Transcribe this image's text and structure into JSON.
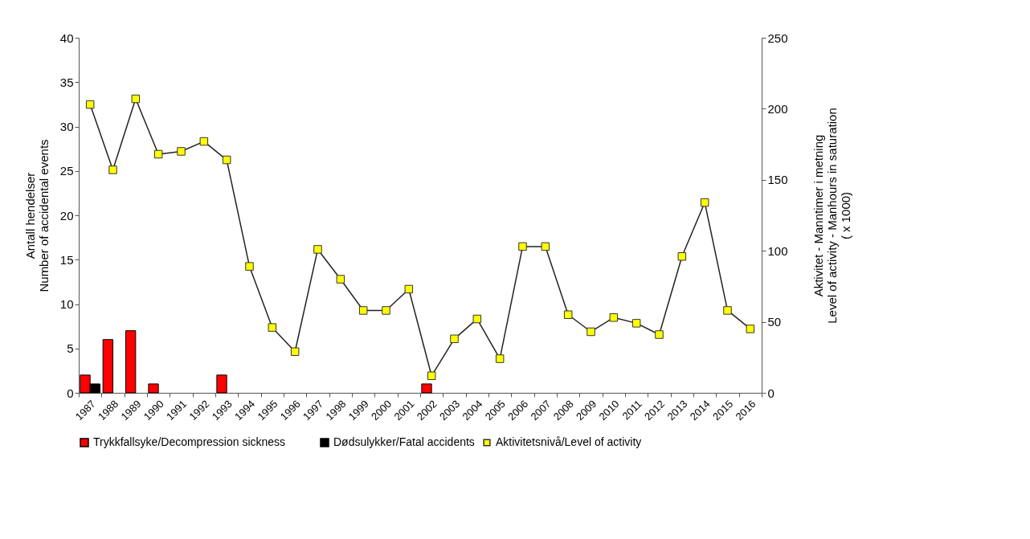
{
  "chart_data": {
    "type": "bar",
    "categories": [
      "1987",
      "1988",
      "1989",
      "1990",
      "1991",
      "1992",
      "1993",
      "1994",
      "1995",
      "1996",
      "1997",
      "1998",
      "1999",
      "2000",
      "2001",
      "2002",
      "2003",
      "2004",
      "2005",
      "2006",
      "2007",
      "2008",
      "2009",
      "2010",
      "2011",
      "2012",
      "2013",
      "2014",
      "2015",
      "2016"
    ],
    "series": [
      {
        "name": "Trykkfallsyke/Decompression sickness",
        "color": "#ff0000",
        "values": [
          2,
          6,
          7,
          1,
          null,
          null,
          2,
          null,
          null,
          null,
          null,
          null,
          null,
          null,
          null,
          1,
          null,
          null,
          null,
          null,
          null,
          null,
          null,
          null,
          null,
          null,
          null,
          null,
          null,
          null
        ]
      },
      {
        "name": "Dødsulykker/Fatal accidents",
        "color": "#000000",
        "values": [
          1,
          null,
          null,
          null,
          null,
          null,
          null,
          null,
          null,
          null,
          null,
          null,
          null,
          null,
          null,
          null,
          null,
          null,
          null,
          null,
          null,
          null,
          null,
          null,
          null,
          null,
          null,
          null,
          null,
          null
        ]
      },
      {
        "name": "Aktivitetsnivå/Level of activity",
        "type": "line",
        "axis": "y2",
        "color": "#ffff00",
        "values": [
          203,
          157,
          207,
          168,
          170,
          177,
          164,
          89,
          46,
          29,
          101,
          80,
          58,
          58,
          73,
          12,
          38,
          52,
          24,
          103,
          103,
          55,
          43,
          53,
          49,
          41,
          96,
          134,
          58,
          45
        ]
      }
    ],
    "ylabel": "Antall hendelser\nNumber of accidental events",
    "y2label": "Aktivitet - Manntimer i metning\nLevel of activity - Manhours in saturation\n( x 1000)",
    "ylim": [
      0,
      40
    ],
    "yticks": [
      0,
      5,
      10,
      15,
      20,
      25,
      30,
      35,
      40
    ],
    "y2lim": [
      0,
      250
    ],
    "y2ticks": [
      0,
      50,
      100,
      150,
      200,
      250
    ],
    "legend": "bottom",
    "grid": false,
    "marker": "square",
    "line_style": "solid"
  }
}
